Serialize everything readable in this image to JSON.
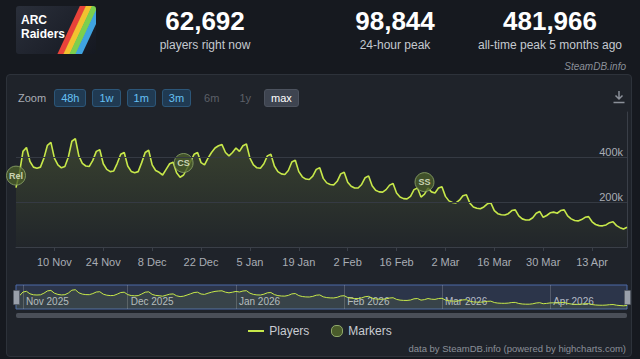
{
  "header": {
    "logo": "ARC Raiders",
    "stats": [
      {
        "value": "62,692",
        "label": "players right now"
      },
      {
        "value": "98,844",
        "label": "24-hour peak"
      },
      {
        "value": "481,966",
        "label": "all-time peak 5 months ago"
      }
    ]
  },
  "source": "SteamDB.info",
  "zoom": {
    "label": "Zoom",
    "buttons": [
      "48h",
      "1w",
      "1m",
      "3m",
      "6m",
      "1y",
      "max"
    ],
    "selected": "max",
    "disabled": [
      "6m",
      "1y"
    ]
  },
  "chart_data": {
    "type": "line",
    "categories": [
      null,
      null,
      null,
      null,
      null,
      null,
      null,
      null,
      null,
      null,
      null,
      "10 Nov",
      null,
      null,
      null,
      null,
      null,
      null,
      null,
      null,
      null,
      null,
      null,
      null,
      null,
      "24 Nov",
      null,
      null,
      null,
      null,
      null,
      null,
      null,
      null,
      null,
      null,
      null,
      null,
      null,
      "8 Dec",
      null,
      null,
      null,
      null,
      null,
      null,
      null,
      null,
      null,
      null,
      null,
      null,
      null,
      "22 Dec",
      null,
      null,
      null,
      null,
      null,
      null,
      null,
      null,
      null,
      null,
      null,
      null,
      null,
      "5 Jan",
      null,
      null,
      null,
      null,
      null,
      null,
      null,
      null,
      null,
      null,
      null,
      null,
      null,
      "19 Jan",
      null,
      null,
      null,
      null,
      null,
      null,
      null,
      null,
      null,
      null,
      null,
      null,
      null,
      "2 Feb",
      null,
      null,
      null,
      null,
      null,
      null,
      null,
      null,
      null,
      null,
      null,
      null,
      null,
      "16 Feb",
      null,
      null,
      null,
      null,
      null,
      null,
      null,
      null,
      null,
      null,
      null,
      null,
      null,
      "2 Mar",
      null,
      null,
      null,
      null,
      null,
      null,
      null,
      null,
      null,
      null,
      null,
      null,
      null,
      "16 Mar",
      null,
      null,
      null,
      null,
      null,
      null,
      null,
      null,
      null,
      null,
      null,
      null,
      null,
      "30 Mar",
      null,
      null,
      null,
      null,
      null,
      null,
      null,
      null,
      null,
      null,
      null,
      null,
      null,
      "13 Apr",
      null,
      null,
      null,
      null,
      null,
      null,
      null,
      null,
      null,
      null
    ],
    "series": [
      {
        "name": "Players",
        "color": "#c7e84a",
        "values": [
          264000,
          330000,
          425000,
          442000,
          380000,
          355000,
          350000,
          355000,
          395000,
          452000,
          465000,
          395000,
          365000,
          352000,
          358000,
          400000,
          470000,
          481966,
          405000,
          372000,
          360000,
          358000,
          385000,
          425000,
          432000,
          370000,
          345000,
          335000,
          338000,
          372000,
          412000,
          420000,
          360000,
          336000,
          330000,
          335000,
          375000,
          420000,
          430000,
          365000,
          340000,
          332000,
          320000,
          345000,
          370000,
          377000,
          330000,
          310000,
          320000,
          350000,
          380000,
          412000,
          420000,
          375000,
          365000,
          395000,
          420000,
          440000,
          450000,
          455000,
          420000,
          405000,
          420000,
          440000,
          425000,
          450000,
          458000,
          395000,
          365000,
          352000,
          350000,
          370000,
          405000,
          412000,
          360000,
          335000,
          325000,
          322000,
          340000,
          378000,
          386000,
          335000,
          312000,
          302000,
          300000,
          315000,
          345000,
          352000,
          305000,
          285000,
          278000,
          276000,
          292000,
          325000,
          332000,
          288000,
          270000,
          262000,
          262000,
          278000,
          308000,
          316000,
          272000,
          252000,
          245000,
          244000,
          255000,
          275000,
          282000,
          240000,
          222000,
          215000,
          214000,
          225000,
          255000,
          262000,
          222000,
          235000,
          262000,
          245000,
          240000,
          262000,
          268000,
          225000,
          205000,
          198000,
          196000,
          208000,
          228000,
          232000,
          195000,
          178000,
          172000,
          170000,
          178000,
          192000,
          196000,
          162000,
          148000,
          143000,
          142000,
          148000,
          162000,
          165000,
          138000,
          125000,
          120000,
          120000,
          130000,
          150000,
          158000,
          132000,
          140000,
          152000,
          155000,
          150000,
          162000,
          165000,
          138000,
          125000,
          118000,
          116000,
          122000,
          132000,
          135000,
          112000,
          100000,
          95000,
          94000,
          98000,
          108000,
          112000,
          95000,
          86000,
          80000,
          88000
        ]
      }
    ],
    "markers": {
      "name": "Markers",
      "color": "#4a5c2b",
      "points": [
        {
          "label": "Rel",
          "index": 0
        },
        {
          "label": "CS",
          "index": 48
        },
        {
          "label": "SS",
          "index": 117
        }
      ]
    },
    "ylim": [
      0,
      600000
    ],
    "yticks": [
      {
        "value": 200000,
        "label": "200k"
      },
      {
        "value": 400000,
        "label": "400k"
      }
    ],
    "grid": true,
    "legend": "bottom"
  },
  "navigator": {
    "labels": [
      {
        "label": "Nov 2025",
        "index": 2
      },
      {
        "label": "Dec 2025",
        "index": 32
      },
      {
        "label": "Jan 2026",
        "index": 63
      },
      {
        "label": "Feb 2026",
        "index": 94
      },
      {
        "label": "Mar 2026",
        "index": 122
      },
      {
        "label": "Apr 2026",
        "index": 153
      }
    ]
  },
  "footer": "data by SteamDB.info (powered by highcharts.com)"
}
